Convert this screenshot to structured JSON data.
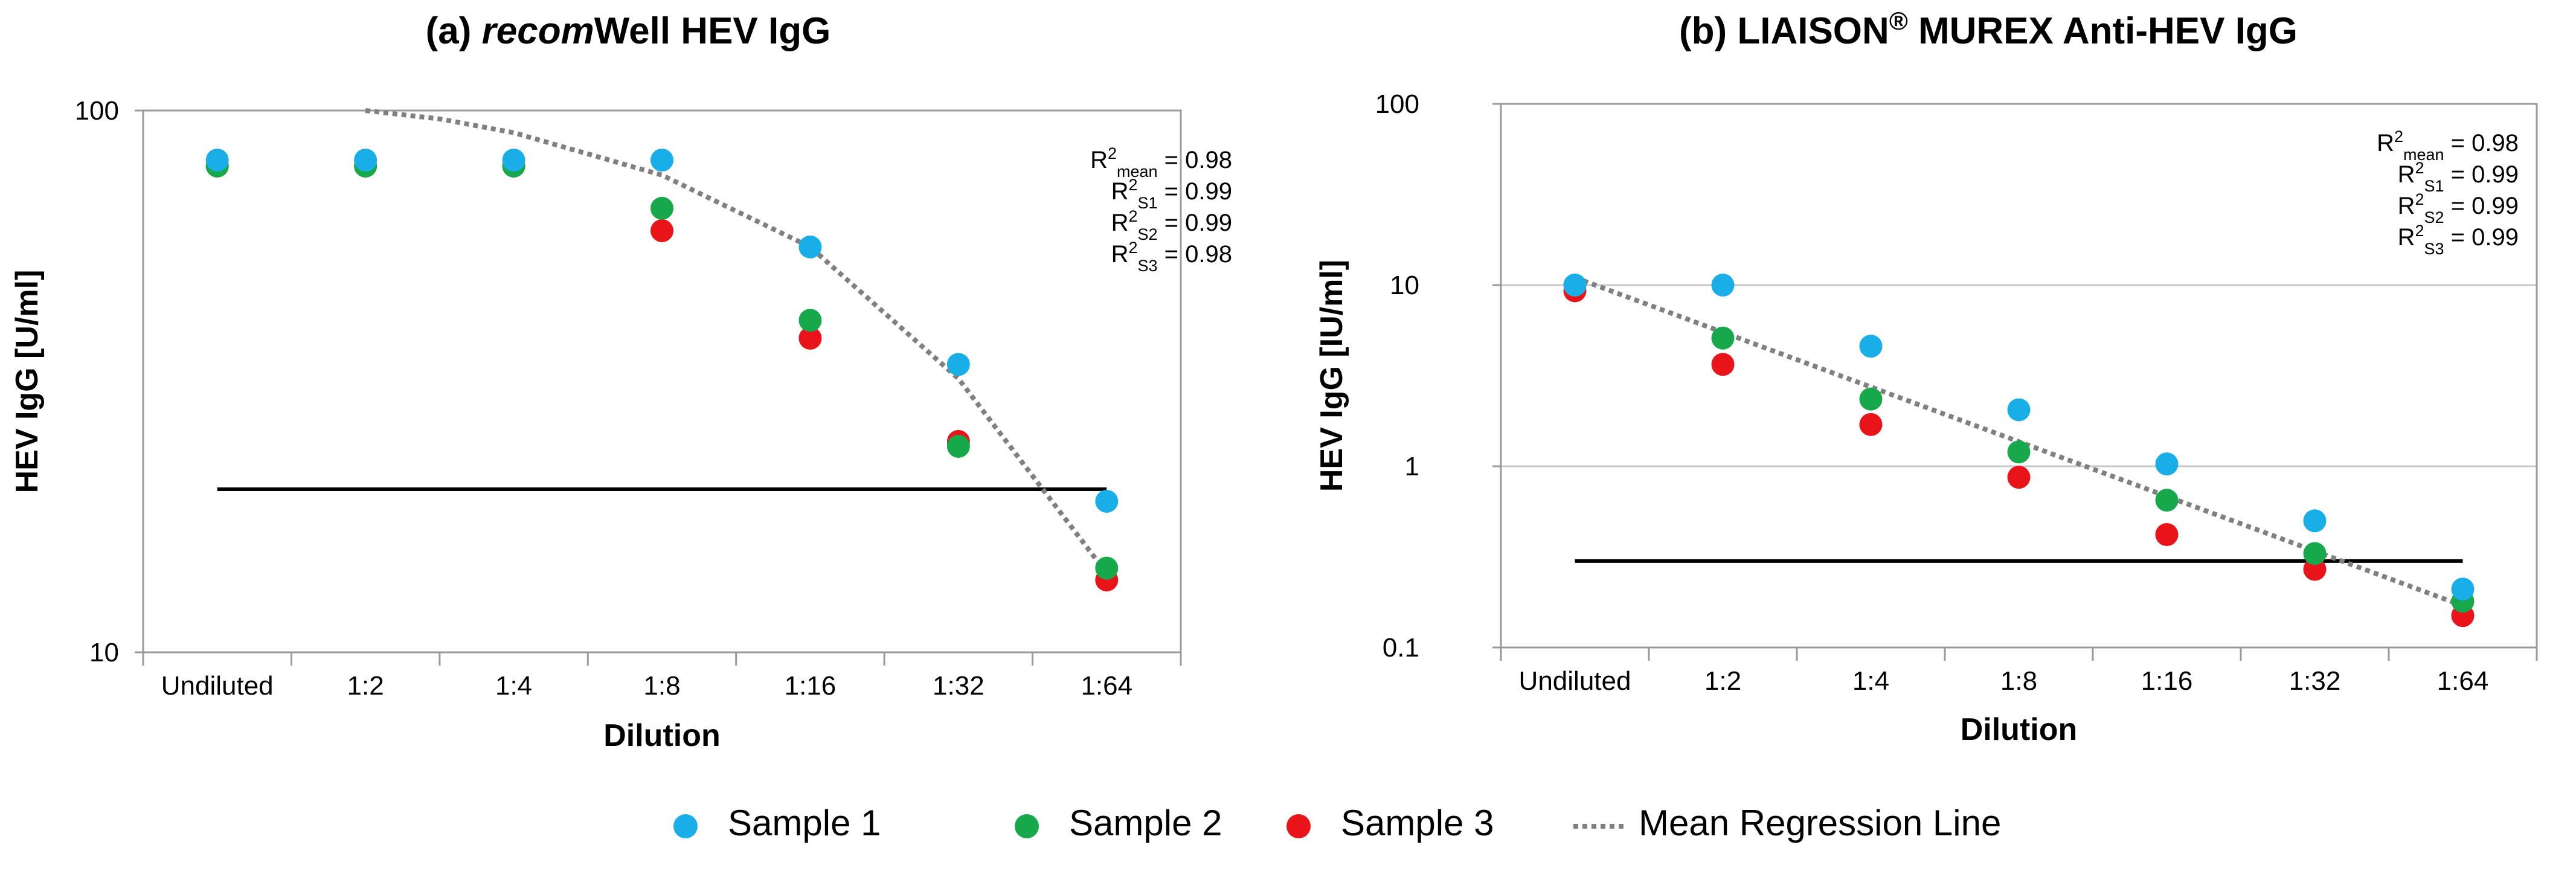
{
  "legend": {
    "placement": "bottom-center",
    "items": [
      {
        "label": "Sample 1",
        "color": "#1aaee8",
        "kind": "marker"
      },
      {
        "label": "Sample 2",
        "color": "#16a84a",
        "kind": "marker"
      },
      {
        "label": "Sample 3",
        "color": "#e8141a",
        "kind": "marker"
      },
      {
        "label": "Mean Regression Line",
        "color": "#808080",
        "kind": "dotted-line"
      }
    ]
  },
  "chart_data": [
    {
      "type": "scatter",
      "title_parts": [
        {
          "text": "(a) ",
          "italic": false
        },
        {
          "text": "recom",
          "italic": true
        },
        {
          "text": "Well HEV IgG",
          "italic": false
        }
      ],
      "xlabel": "Dilution",
      "ylabel": "HEV IgG [U/ml]",
      "yscale": "log",
      "ylim": [
        10,
        100
      ],
      "yticks": [
        10,
        100
      ],
      "ytick_labels": [
        "10",
        "100"
      ],
      "gridlines": false,
      "categories": [
        "Undiluted",
        "1:2",
        "1:4",
        "1:8",
        "1:16",
        "1:32",
        "1:64"
      ],
      "series": [
        {
          "name": "Sample 1",
          "color": "#1aaee8",
          "values": [
            81,
            81,
            81,
            81,
            56,
            34,
            19
          ]
        },
        {
          "name": "Sample 2",
          "color": "#16a84a",
          "values": [
            79,
            79,
            79,
            66,
            41,
            24,
            14.3
          ]
        },
        {
          "name": "Sample 3",
          "color": "#e8141a",
          "values": [
            79,
            79,
            79,
            60,
            38,
            24.5,
            13.6
          ]
        }
      ],
      "regression": {
        "name": "Mean Regression Line",
        "color": "#808080",
        "x": [
          1,
          1.5,
          2,
          3,
          4,
          5,
          6
        ],
        "y": [
          100,
          96.5,
          91,
          76,
          56,
          32,
          14
        ]
      },
      "cutoff": {
        "value": 20,
        "from_index": 0,
        "to_index": 6,
        "color": "#000000"
      },
      "annotations": [
        {
          "base": "R",
          "sup": "2",
          "sub": "mean",
          "value": " = 0.98"
        },
        {
          "base": "R",
          "sup": "2",
          "sub": "S1",
          "value": " = 0.99"
        },
        {
          "base": "R",
          "sup": "2",
          "sub": "S2",
          "value": " = 0.99"
        },
        {
          "base": "R",
          "sup": "2",
          "sub": "S3",
          "value": " = 0.98"
        }
      ]
    },
    {
      "type": "scatter",
      "title_parts": [
        {
          "text": "(b) LIAISON",
          "italic": false
        },
        {
          "text": "®",
          "sup": true
        },
        {
          "text": "  MUREX Anti-HEV IgG",
          "italic": false
        }
      ],
      "xlabel": "Dilution",
      "ylabel": "HEV IgG [IU/ml]",
      "yscale": "log",
      "ylim": [
        0.1,
        100
      ],
      "yticks": [
        0.1,
        1,
        10,
        100
      ],
      "ytick_labels": [
        "0.1",
        "1",
        "10",
        "100"
      ],
      "gridlines": true,
      "categories": [
        "Undiluted",
        "1:2",
        "1:4",
        "1:8",
        "1:16",
        "1:32",
        "1:64"
      ],
      "series": [
        {
          "name": "Sample 1",
          "color": "#1aaee8",
          "values": [
            10,
            10,
            4.6,
            2.05,
            1.03,
            0.5,
            0.21
          ]
        },
        {
          "name": "Sample 2",
          "color": "#16a84a",
          "values": [
            10,
            5.1,
            2.35,
            1.2,
            0.65,
            0.33,
            0.18
          ]
        },
        {
          "name": "Sample 3",
          "color": "#e8141a",
          "values": [
            9.3,
            3.65,
            1.7,
            0.87,
            0.42,
            0.27,
            0.15
          ]
        }
      ],
      "regression": {
        "name": "Mean Regression Line",
        "color": "#808080",
        "x": [
          0,
          6
        ],
        "y": [
          11,
          0.17
        ]
      },
      "cutoff": {
        "value": 0.3,
        "from_index": 0,
        "to_index": 6,
        "color": "#000000"
      },
      "annotations": [
        {
          "base": "R",
          "sup": "2",
          "sub": "mean",
          "value": " = 0.98"
        },
        {
          "base": "R",
          "sup": "2",
          "sub": "S1",
          "value": " = 0.99"
        },
        {
          "base": "R",
          "sup": "2",
          "sub": "S2",
          "value": " = 0.99"
        },
        {
          "base": "R",
          "sup": "2",
          "sub": "S3",
          "value": " = 0.99"
        }
      ]
    }
  ]
}
